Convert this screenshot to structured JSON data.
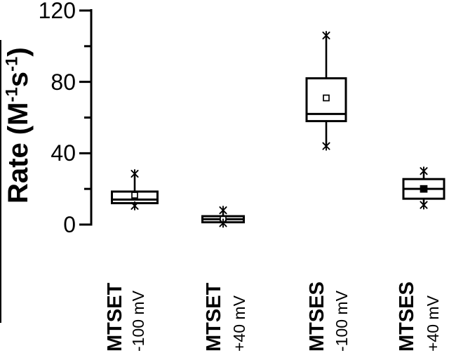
{
  "figure": {
    "background_color": "#ffffff",
    "ink_color": "#000000"
  },
  "chart_data": {
    "type": "box",
    "title": "",
    "xlabel": "",
    "ylabel": "Rate (M⁻¹s⁻¹)",
    "ylabel_parts": {
      "prefix": "Rate (M",
      "sup1": "-1",
      "mid": "s",
      "sup2": "-1",
      "suffix": ")"
    },
    "ylim": [
      0,
      120
    ],
    "yticks_major": [
      0,
      40,
      80,
      120
    ],
    "yticks_minor": [
      20,
      60,
      100
    ],
    "grid": false,
    "legend": "none",
    "whisker_cap_marker": "asterisk",
    "categories": [
      {
        "label": "MTSET",
        "condition": "-100 mV"
      },
      {
        "label": "MTSET",
        "condition": "+40 mV"
      },
      {
        "label": "MTSES",
        "condition": "-100 mV"
      },
      {
        "label": "MTSES",
        "condition": "+40 mV"
      }
    ],
    "series": [
      {
        "name": "MTSET -100 mV",
        "whisker_low": 10.5,
        "q1": 12,
        "median": 14,
        "mean": 16.5,
        "q3": 18.5,
        "whisker_high": 28.5,
        "mean_marker": "open"
      },
      {
        "name": "MTSET +40 mV",
        "whisker_low": 0.8,
        "q1": 1.3,
        "median": 3,
        "mean": 3,
        "q3": 4.7,
        "whisker_high": 8,
        "mean_marker": "open"
      },
      {
        "name": "MTSES -100 mV",
        "whisker_low": 44,
        "q1": 58,
        "median": 62,
        "mean": 71,
        "q3": 82,
        "whisker_high": 106,
        "mean_marker": "open"
      },
      {
        "name": "MTSES +40 mV",
        "whisker_low": 11,
        "q1": 14.5,
        "median": 20,
        "mean": 20,
        "q3": 25.5,
        "whisker_high": 30,
        "mean_marker": "filled"
      }
    ]
  }
}
